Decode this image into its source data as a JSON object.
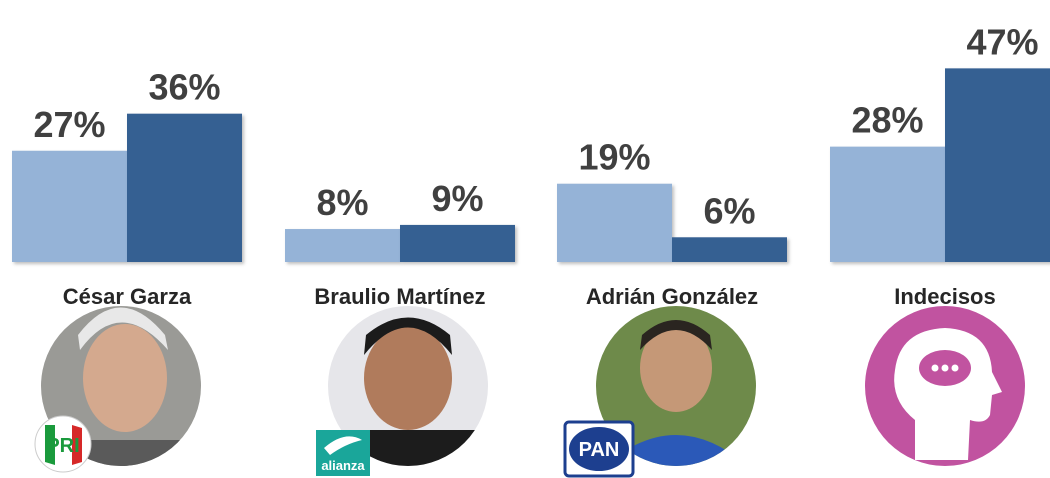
{
  "chart_data": {
    "type": "bar",
    "categories": [
      "César Garza",
      "Braulio Martínez",
      "Adrián González",
      "Indecisos"
    ],
    "series": [
      {
        "color": "#95b3d7",
        "values": [
          27,
          8,
          19,
          28
        ],
        "value_labels": [
          "27%",
          "8%",
          "19%",
          "28%"
        ]
      },
      {
        "color": "#366092",
        "values": [
          36,
          9,
          6,
          47
        ],
        "value_labels": [
          "36%",
          "9%",
          "6%",
          "47%"
        ]
      }
    ],
    "ylim": [
      0,
      50
    ]
  },
  "logos": {
    "pri": "PRI",
    "alianza": "alianza",
    "pan": "PAN"
  }
}
